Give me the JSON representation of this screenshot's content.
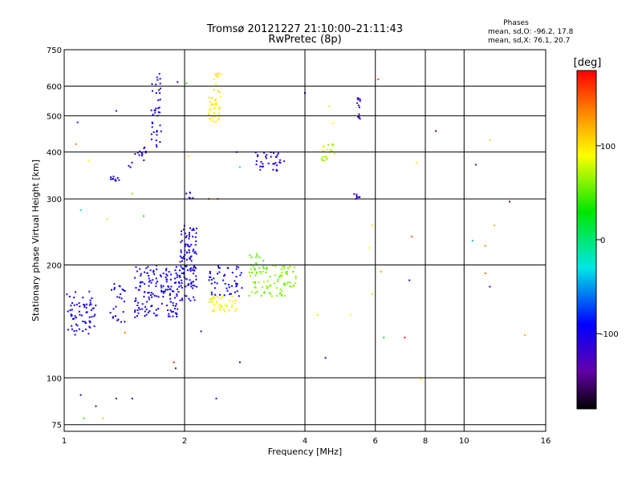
{
  "chart_data": {
    "type": "scatter",
    "title_line1": "Tromsø 20121227 21:10:00–21:11:43",
    "title_line2": "RwPretec (8p)",
    "xlabel": "Frequency [MHz]",
    "ylabel": "Stationary phase Virtual Height [km]",
    "x_scale": "log",
    "y_scale": "log",
    "xlim": [
      1,
      16
    ],
    "ylim": [
      72,
      750
    ],
    "x_ticks": [
      1,
      2,
      4,
      6,
      8,
      10,
      16
    ],
    "x_tick_labels": [
      "1",
      "2",
      "4",
      "6",
      "8",
      "10",
      "16"
    ],
    "y_ticks": [
      75,
      100,
      200,
      300,
      400,
      500,
      600,
      750
    ],
    "y_tick_labels": [
      "75",
      "100",
      "200",
      "300",
      "400",
      "500",
      "600",
      "750"
    ],
    "grid": true,
    "stats": {
      "title": "Phases",
      "line_o": "mean, sd,O: -96.2, 17.8",
      "line_x": "mean, sd,X:  76.1, 20.7"
    },
    "colorbar": {
      "label": "[deg]",
      "range": [
        -180,
        180
      ],
      "ticks": [
        100,
        0,
        -100
      ],
      "tick_labels": [
        "100",
        "0",
        "-100"
      ],
      "colors": [
        "#ff0000",
        "#ff8800",
        "#ffff00",
        "#00ee00",
        "#00e6e6",
        "#0000ff",
        "#6600aa",
        "#000000"
      ]
    },
    "clusters": [
      {
        "x": [
          1.0,
          1.2
        ],
        "y": [
          130,
          170
        ],
        "phase": -100,
        "n": 70
      },
      {
        "x": [
          1.3,
          1.42
        ],
        "y": [
          140,
          180
        ],
        "phase": -100,
        "n": 25
      },
      {
        "x": [
          1.5,
          1.95
        ],
        "y": [
          145,
          200
        ],
        "phase": -100,
        "n": 160
      },
      {
        "x": [
          1.95,
          2.15
        ],
        "y": [
          160,
          255
        ],
        "phase": -100,
        "n": 110
      },
      {
        "x": [
          2.3,
          2.8
        ],
        "y": [
          165,
          200
        ],
        "phase": -95,
        "n": 50
      },
      {
        "x": [
          2.3,
          2.7
        ],
        "y": [
          150,
          165
        ],
        "phase": 90,
        "n": 40
      },
      {
        "x": [
          2.9,
          3.8
        ],
        "y": [
          165,
          200
        ],
        "phase": 60,
        "n": 90
      },
      {
        "x": [
          2.9,
          3.2
        ],
        "y": [
          195,
          215
        ],
        "phase": 50,
        "n": 15
      },
      {
        "x": [
          2.3,
          2.45
        ],
        "y": [
          480,
          560
        ],
        "phase": 95,
        "n": 35
      },
      {
        "x": [
          2.33,
          2.48
        ],
        "y": [
          560,
          650
        ],
        "phase": 100,
        "n": 12
      },
      {
        "x": [
          1.65,
          1.75
        ],
        "y": [
          410,
          650
        ],
        "phase": -100,
        "n": 40
      },
      {
        "x": [
          1.45,
          1.62
        ],
        "y": [
          360,
          420
        ],
        "phase": -100,
        "n": 15
      },
      {
        "x": [
          1.3,
          1.38
        ],
        "y": [
          335,
          350
        ],
        "phase": -100,
        "n": 10
      },
      {
        "x": [
          3.0,
          3.55
        ],
        "y": [
          355,
          400
        ],
        "phase": -110,
        "n": 35
      },
      {
        "x": [
          4.4,
          4.8
        ],
        "y": [
          380,
          420
        ],
        "phase": 70,
        "n": 20
      },
      {
        "x": [
          5.4,
          5.5
        ],
        "y": [
          490,
          560
        ],
        "phase": -120,
        "n": 14
      },
      {
        "x": [
          5.3,
          5.5
        ],
        "y": [
          300,
          310
        ],
        "phase": -110,
        "n": 8
      },
      {
        "x": [
          1.95,
          2.1
        ],
        "y": [
          300,
          315
        ],
        "phase": -100,
        "n": 6
      }
    ],
    "scattered_points": [
      {
        "x": 1.08,
        "y": 480,
        "phase": -80
      },
      {
        "x": 1.07,
        "y": 420,
        "phase": 140
      },
      {
        "x": 1.15,
        "y": 380,
        "phase": 90
      },
      {
        "x": 1.1,
        "y": 280,
        "phase": -20
      },
      {
        "x": 1.28,
        "y": 265,
        "phase": 80
      },
      {
        "x": 1.35,
        "y": 515,
        "phase": -110
      },
      {
        "x": 1.48,
        "y": 310,
        "phase": 60
      },
      {
        "x": 1.58,
        "y": 270,
        "phase": 40
      },
      {
        "x": 1.92,
        "y": 615,
        "phase": -120
      },
      {
        "x": 2.02,
        "y": 610,
        "phase": 40
      },
      {
        "x": 2.05,
        "y": 390,
        "phase": 100
      },
      {
        "x": 2.3,
        "y": 300,
        "phase": 160
      },
      {
        "x": 2.42,
        "y": 300,
        "phase": 160
      },
      {
        "x": 2.7,
        "y": 400,
        "phase": -100
      },
      {
        "x": 2.75,
        "y": 365,
        "phase": -10
      },
      {
        "x": 4.0,
        "y": 575,
        "phase": -100
      },
      {
        "x": 4.6,
        "y": 530,
        "phase": 80
      },
      {
        "x": 4.7,
        "y": 478,
        "phase": 90
      },
      {
        "x": 6.1,
        "y": 625,
        "phase": 160
      },
      {
        "x": 8.5,
        "y": 455,
        "phase": -110
      },
      {
        "x": 7.6,
        "y": 375,
        "phase": 100
      },
      {
        "x": 11.6,
        "y": 430,
        "phase": 110
      },
      {
        "x": 10.7,
        "y": 370,
        "phase": -120
      },
      {
        "x": 13.0,
        "y": 295,
        "phase": -110
      },
      {
        "x": 5.9,
        "y": 255,
        "phase": 100
      },
      {
        "x": 7.4,
        "y": 238,
        "phase": 150
      },
      {
        "x": 10.5,
        "y": 232,
        "phase": -40
      },
      {
        "x": 11.3,
        "y": 225,
        "phase": 130
      },
      {
        "x": 11.9,
        "y": 255,
        "phase": 120
      },
      {
        "x": 5.8,
        "y": 222,
        "phase": 90
      },
      {
        "x": 6.2,
        "y": 192,
        "phase": 130
      },
      {
        "x": 7.3,
        "y": 182,
        "phase": -100
      },
      {
        "x": 11.3,
        "y": 190,
        "phase": 150
      },
      {
        "x": 11.6,
        "y": 175,
        "phase": -110
      },
      {
        "x": 5.9,
        "y": 167,
        "phase": 80
      },
      {
        "x": 4.3,
        "y": 147,
        "phase": 80
      },
      {
        "x": 5.2,
        "y": 147,
        "phase": 90
      },
      {
        "x": 6.3,
        "y": 128,
        "phase": 20
      },
      {
        "x": 7.1,
        "y": 128,
        "phase": 170
      },
      {
        "x": 14.2,
        "y": 130,
        "phase": 120
      },
      {
        "x": 4.5,
        "y": 113,
        "phase": -110
      },
      {
        "x": 2.75,
        "y": 110,
        "phase": -120
      },
      {
        "x": 1.88,
        "y": 110,
        "phase": 170
      },
      {
        "x": 1.9,
        "y": 106,
        "phase": -120
      },
      {
        "x": 2.2,
        "y": 133,
        "phase": -120
      },
      {
        "x": 1.42,
        "y": 132,
        "phase": 140
      },
      {
        "x": 1.1,
        "y": 90,
        "phase": -110
      },
      {
        "x": 1.2,
        "y": 84,
        "phase": -110
      },
      {
        "x": 1.35,
        "y": 88,
        "phase": -120
      },
      {
        "x": 1.48,
        "y": 88,
        "phase": -110
      },
      {
        "x": 1.12,
        "y": 78,
        "phase": 40
      },
      {
        "x": 1.25,
        "y": 78,
        "phase": 110
      },
      {
        "x": 2.4,
        "y": 88,
        "phase": -110
      },
      {
        "x": 7.8,
        "y": 99,
        "phase": 100
      }
    ]
  }
}
